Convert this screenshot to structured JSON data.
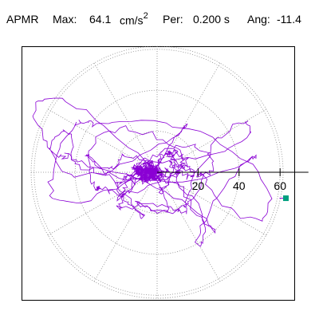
{
  "header": {
    "station": "APMR",
    "max_label": "Max:",
    "max_value": "64.1",
    "max_unit": "cm/s",
    "max_unit_exp": "2",
    "per_label": "Per:",
    "per_value": "0.200 s",
    "ang_label": "Ang:",
    "ang_value": "-11.4"
  },
  "chart_data": {
    "type": "scatter",
    "subtype": "polar particle-motion trace",
    "radial_ticks": [
      20,
      40,
      60
    ],
    "radial_rings": [
      20,
      40,
      60
    ],
    "angular_spokes_deg": [
      0,
      30,
      60,
      90,
      120,
      150,
      180,
      210,
      240,
      270,
      300,
      330
    ],
    "r_max": 64.1,
    "angle_deg": -11.4,
    "max_marker": {
      "r": 64.1,
      "angle_deg": -11.4,
      "color": "#009f7f"
    },
    "trace_color": "#8a00d4",
    "grid": "dotted",
    "colors": {
      "axis": "#000000",
      "grid": "#888888",
      "frame": "#000000"
    }
  }
}
